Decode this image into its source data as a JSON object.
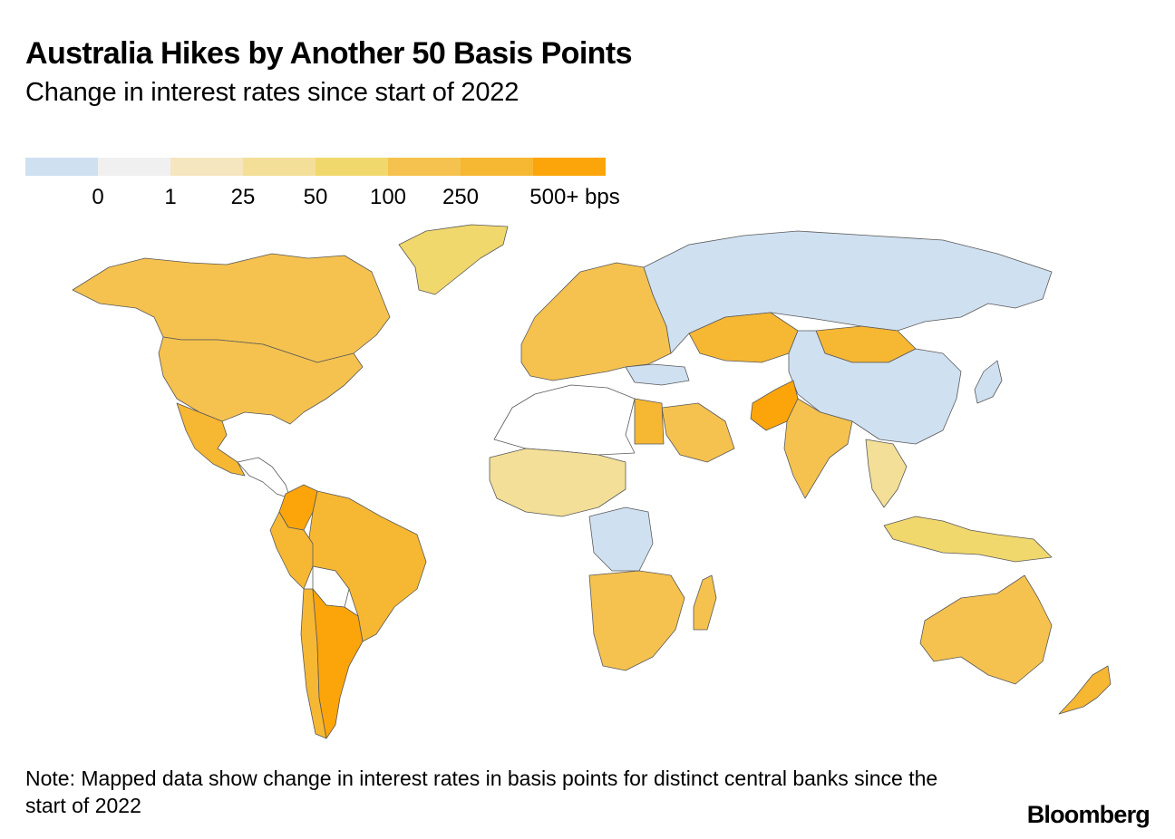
{
  "header": {
    "title": "Australia Hikes by Another 50 Basis Points",
    "subtitle": "Change in interest rates since start of 2022"
  },
  "legend": {
    "bins": [
      {
        "color": "#cfe0f1",
        "label": "0"
      },
      {
        "color": "#f0f0f0",
        "label": "1"
      },
      {
        "color": "#f5e6c0",
        "label": "25"
      },
      {
        "color": "#f3df97",
        "label": "50"
      },
      {
        "color": "#f1d86d",
        "label": "100"
      },
      {
        "color": "#f5c24f",
        "label": "250"
      },
      {
        "color": "#f6b733",
        "label": "500+ bps"
      },
      {
        "color": "#fca50a",
        "label": ""
      }
    ]
  },
  "map": {
    "colors": {
      "no_data": "#ffffff",
      "zero": "#cfe0f1",
      "b1": "#f0f0f0",
      "b25": "#f5e6c0",
      "b50": "#f3df97",
      "b100": "#f1d86d",
      "b250": "#f5c24f",
      "b500": "#f6b733",
      "b500plus": "#fca50a"
    },
    "regions": [
      {
        "id": "canada",
        "bin": "b250"
      },
      {
        "id": "usa",
        "bin": "b250"
      },
      {
        "id": "mexico",
        "bin": "b500"
      },
      {
        "id": "central-america",
        "bin": "no_data"
      },
      {
        "id": "greenland",
        "bin": "b100"
      },
      {
        "id": "colombia",
        "bin": "b500plus"
      },
      {
        "id": "brazil",
        "bin": "b500"
      },
      {
        "id": "peru",
        "bin": "b500"
      },
      {
        "id": "bolivia",
        "bin": "no_data"
      },
      {
        "id": "argentina",
        "bin": "b500plus"
      },
      {
        "id": "chile",
        "bin": "b500"
      },
      {
        "id": "europe",
        "bin": "b250"
      },
      {
        "id": "russia",
        "bin": "zero"
      },
      {
        "id": "china",
        "bin": "zero"
      },
      {
        "id": "kazakhstan",
        "bin": "b500"
      },
      {
        "id": "mongolia",
        "bin": "b500"
      },
      {
        "id": "india",
        "bin": "b250"
      },
      {
        "id": "pakistan",
        "bin": "b500plus"
      },
      {
        "id": "saudi-arabia",
        "bin": "b250"
      },
      {
        "id": "egypt",
        "bin": "b500"
      },
      {
        "id": "north-africa",
        "bin": "no_data"
      },
      {
        "id": "west-africa",
        "bin": "b50"
      },
      {
        "id": "congo",
        "bin": "zero"
      },
      {
        "id": "southern-africa",
        "bin": "b250"
      },
      {
        "id": "madagascar",
        "bin": "b250"
      },
      {
        "id": "australia",
        "bin": "b250"
      },
      {
        "id": "new-zealand",
        "bin": "b500"
      },
      {
        "id": "indonesia",
        "bin": "b100"
      },
      {
        "id": "southeast-asia",
        "bin": "b50"
      },
      {
        "id": "japan",
        "bin": "zero"
      },
      {
        "id": "turkey",
        "bin": "zero"
      }
    ]
  },
  "note": "Note: Mapped data show change in interest rates in basis points for distinct central banks since the start of 2022",
  "brand": "Bloomberg"
}
